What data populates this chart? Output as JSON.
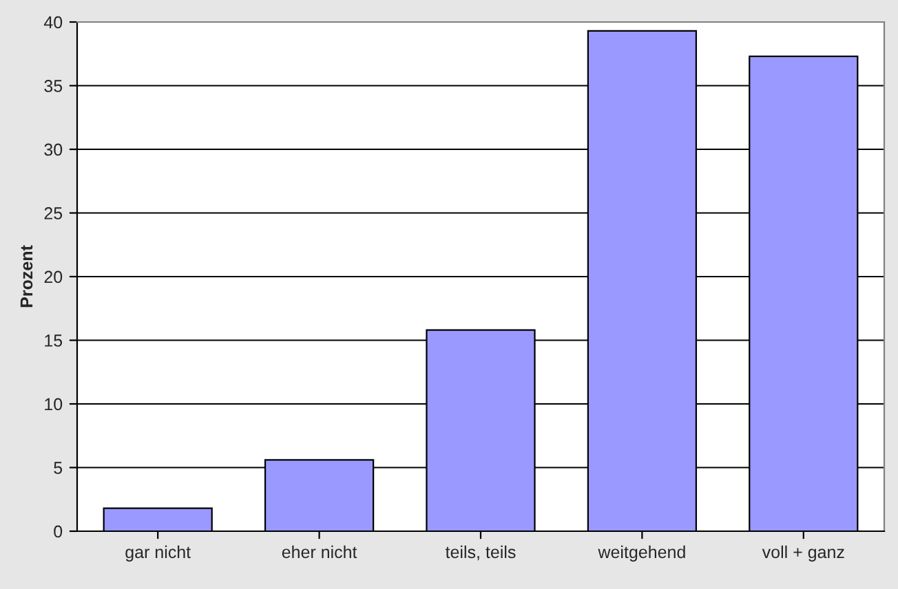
{
  "chart_data": {
    "type": "bar",
    "ylabel": "Prozent",
    "categories": [
      "gar nicht",
      "eher nicht",
      "teils, teils",
      "weitgehend",
      "voll + ganz"
    ],
    "values": [
      1.8,
      5.6,
      15.8,
      39.3,
      37.3
    ],
    "color": "#9999ff",
    "ylim": [
      0,
      40
    ],
    "yticks": [
      0,
      5,
      10,
      15,
      20,
      25,
      30,
      35,
      40
    ],
    "grid": "y"
  }
}
